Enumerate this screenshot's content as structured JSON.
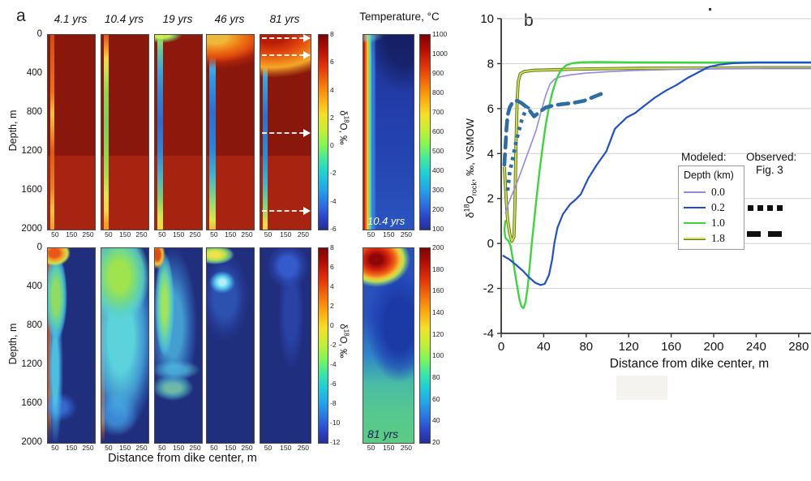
{
  "figure": {
    "panel_a_label": "a",
    "panel_b_label": "b"
  },
  "panel_a": {
    "times": [
      "4.1 yrs",
      "10.4 yrs",
      "19 yrs",
      "46 yrs",
      "81 yrs"
    ],
    "x_ticks": [
      "50",
      "150",
      "250"
    ],
    "x_axis_label": "Distance from dike center, m",
    "depth_label": "Depth, m",
    "depth_ticks": [
      "0",
      "400",
      "800",
      "1200",
      "1600",
      "2000"
    ],
    "colorbar_label_parts": {
      "d": "δ",
      "iso": "18",
      "suffix": "O, ‰"
    },
    "colorbar_top_ticks": [
      "8",
      "6",
      "4",
      "2",
      "0",
      "-2",
      "-4",
      "-6"
    ],
    "colorbar_bottom_ticks": [
      "8",
      "6",
      "4",
      "2",
      "0",
      "-2",
      "-4",
      "-6",
      "-8",
      "-10",
      "-12"
    ],
    "temperature": {
      "title": "Temperature, °C",
      "top_inset": "10.4 yrs",
      "bottom_inset": "81 yrs",
      "colorbar_top_ticks": [
        "1100",
        "1000",
        "900",
        "800",
        "700",
        "600",
        "500",
        "400",
        "300",
        "200",
        "100"
      ],
      "colorbar_bottom_ticks": [
        "200",
        "180",
        "160",
        "140",
        "120",
        "100",
        "80",
        "60",
        "40",
        "20"
      ]
    }
  },
  "chart_data": {
    "type": "line",
    "title": "",
    "xlabel": "Distance from dike center, m",
    "ylabel": "δ18Orock, ‰, VSMOW",
    "ylabel_parts": {
      "d": "δ",
      "iso": "18",
      "o": "O",
      "sub": "rock",
      "suffix": ", ‰, VSMOW"
    },
    "xlim": [
      0,
      295
    ],
    "ylim": [
      -4,
      10
    ],
    "x_ticks": [
      0,
      40,
      80,
      120,
      160,
      200,
      240,
      280
    ],
    "y_ticks": [
      10,
      8,
      6,
      4,
      2,
      0,
      -2,
      -4
    ],
    "grid": true,
    "legend": {
      "modeled_header": "Modeled:",
      "observed_header": "Observed:",
      "observed_sub": "Fig. 3",
      "depth_header": "Depth (km)"
    },
    "series": [
      {
        "name": "1.8",
        "type": "modeled",
        "color": "#cbe14d",
        "edge": "#5f6b1d",
        "width": 2,
        "points": [
          [
            3,
            3.4
          ],
          [
            4,
            2.55
          ],
          [
            5,
            1.75
          ],
          [
            6,
            1.05
          ],
          [
            8,
            0.45
          ],
          [
            10,
            0.1
          ],
          [
            12,
            0.3
          ],
          [
            13,
            1.8
          ],
          [
            14,
            4.5
          ],
          [
            15,
            6.4
          ],
          [
            16,
            7.2
          ],
          [
            18,
            7.55
          ],
          [
            22,
            7.65
          ],
          [
            30,
            7.7
          ],
          [
            45,
            7.72
          ],
          [
            65,
            7.75
          ],
          [
            90,
            7.77
          ],
          [
            130,
            7.79
          ],
          [
            180,
            7.8
          ],
          [
            240,
            7.82
          ],
          [
            295,
            7.82
          ]
        ]
      },
      {
        "name": "0.0",
        "type": "modeled",
        "color": "#9488e2",
        "width": 1.6,
        "points": [
          [
            4,
            1.35
          ],
          [
            7,
            1.8
          ],
          [
            10,
            2.15
          ],
          [
            14,
            2.6
          ],
          [
            18,
            3.1
          ],
          [
            23,
            3.75
          ],
          [
            28,
            4.4
          ],
          [
            33,
            5.05
          ],
          [
            38,
            5.95
          ],
          [
            42,
            6.6
          ],
          [
            46,
            7.1
          ],
          [
            50,
            7.3
          ],
          [
            56,
            7.42
          ],
          [
            65,
            7.5
          ],
          [
            80,
            7.58
          ],
          [
            100,
            7.64
          ],
          [
            130,
            7.7
          ],
          [
            165,
            7.74
          ],
          [
            200,
            7.77
          ],
          [
            250,
            7.8
          ],
          [
            295,
            7.8
          ]
        ]
      },
      {
        "name": "1.0",
        "type": "modeled",
        "color": "#3cd63c",
        "width": 2.4,
        "points": [
          [
            4,
            1.0
          ],
          [
            3,
            0.6
          ],
          [
            4,
            0.25
          ],
          [
            7,
            0.1
          ],
          [
            9,
            -0.15
          ],
          [
            11,
            -0.7
          ],
          [
            13,
            -1.3
          ],
          [
            15,
            -1.9
          ],
          [
            17,
            -2.45
          ],
          [
            19,
            -2.8
          ],
          [
            21,
            -2.88
          ],
          [
            23,
            -2.6
          ],
          [
            25,
            -1.9
          ],
          [
            27,
            -0.9
          ],
          [
            29,
            0.1
          ],
          [
            31,
            1.0
          ],
          [
            33,
            1.9
          ],
          [
            36,
            3.2
          ],
          [
            39,
            4.3
          ],
          [
            42,
            5.3
          ],
          [
            45,
            6.1
          ],
          [
            48,
            6.7
          ],
          [
            52,
            7.3
          ],
          [
            56,
            7.7
          ],
          [
            61,
            7.92
          ],
          [
            67,
            8.02
          ],
          [
            75,
            8.06
          ],
          [
            90,
            8.07
          ],
          [
            120,
            8.06
          ],
          [
            180,
            8.05
          ],
          [
            295,
            8.05
          ]
        ]
      },
      {
        "name": "0.2",
        "type": "modeled",
        "color": "#2050c8",
        "width": 2.2,
        "points": [
          [
            2,
            -0.55
          ],
          [
            8,
            -0.72
          ],
          [
            14,
            -0.95
          ],
          [
            20,
            -1.2
          ],
          [
            26,
            -1.5
          ],
          [
            32,
            -1.75
          ],
          [
            37,
            -1.85
          ],
          [
            41,
            -1.8
          ],
          [
            45,
            -1.4
          ],
          [
            48,
            -0.7
          ],
          [
            50,
            0
          ],
          [
            53,
            0.7
          ],
          [
            58,
            1.3
          ],
          [
            65,
            1.75
          ],
          [
            70,
            1.95
          ],
          [
            75,
            2.2
          ],
          [
            82,
            2.9
          ],
          [
            90,
            3.5
          ],
          [
            99,
            4.1
          ],
          [
            107,
            5.1
          ],
          [
            118,
            5.6
          ],
          [
            126,
            5.8
          ],
          [
            134,
            6.1
          ],
          [
            145,
            6.5
          ],
          [
            155,
            6.8
          ],
          [
            165,
            7.05
          ],
          [
            175,
            7.35
          ],
          [
            185,
            7.6
          ],
          [
            195,
            7.85
          ],
          [
            205,
            7.95
          ],
          [
            218,
            8.02
          ],
          [
            240,
            8.05
          ],
          [
            295,
            8.05
          ]
        ]
      },
      {
        "name": "observed-dotted",
        "type": "observed",
        "style": "dotted",
        "color": "#2e6da4",
        "width": 4.6,
        "points": [
          [
            6,
            2.35
          ],
          [
            7,
            2.75
          ],
          [
            8,
            3.15
          ],
          [
            10,
            3.6
          ],
          [
            12,
            4.05
          ],
          [
            14,
            4.5
          ],
          [
            16,
            4.9
          ],
          [
            18,
            5.25
          ],
          [
            20,
            5.6
          ],
          [
            23,
            5.9
          ],
          [
            26,
            6.1
          ]
        ]
      },
      {
        "name": "observed-dashed",
        "type": "observed",
        "style": "dashed",
        "color": "#2e6da4",
        "width": 4.6,
        "points": [
          [
            3,
            3.5
          ],
          [
            4,
            4.3
          ],
          [
            5,
            5.1
          ],
          [
            6,
            5.7
          ],
          [
            8,
            6.05
          ],
          [
            11,
            6.3
          ],
          [
            15,
            6.35
          ],
          [
            19,
            6.25
          ],
          [
            23,
            6.1
          ],
          [
            27,
            5.9
          ],
          [
            31,
            5.65
          ],
          [
            36,
            5.85
          ],
          [
            42,
            6.05
          ],
          [
            50,
            6.15
          ],
          [
            58,
            6.2
          ],
          [
            68,
            6.25
          ],
          [
            78,
            6.35
          ],
          [
            86,
            6.5
          ],
          [
            94,
            6.65
          ]
        ]
      }
    ]
  }
}
